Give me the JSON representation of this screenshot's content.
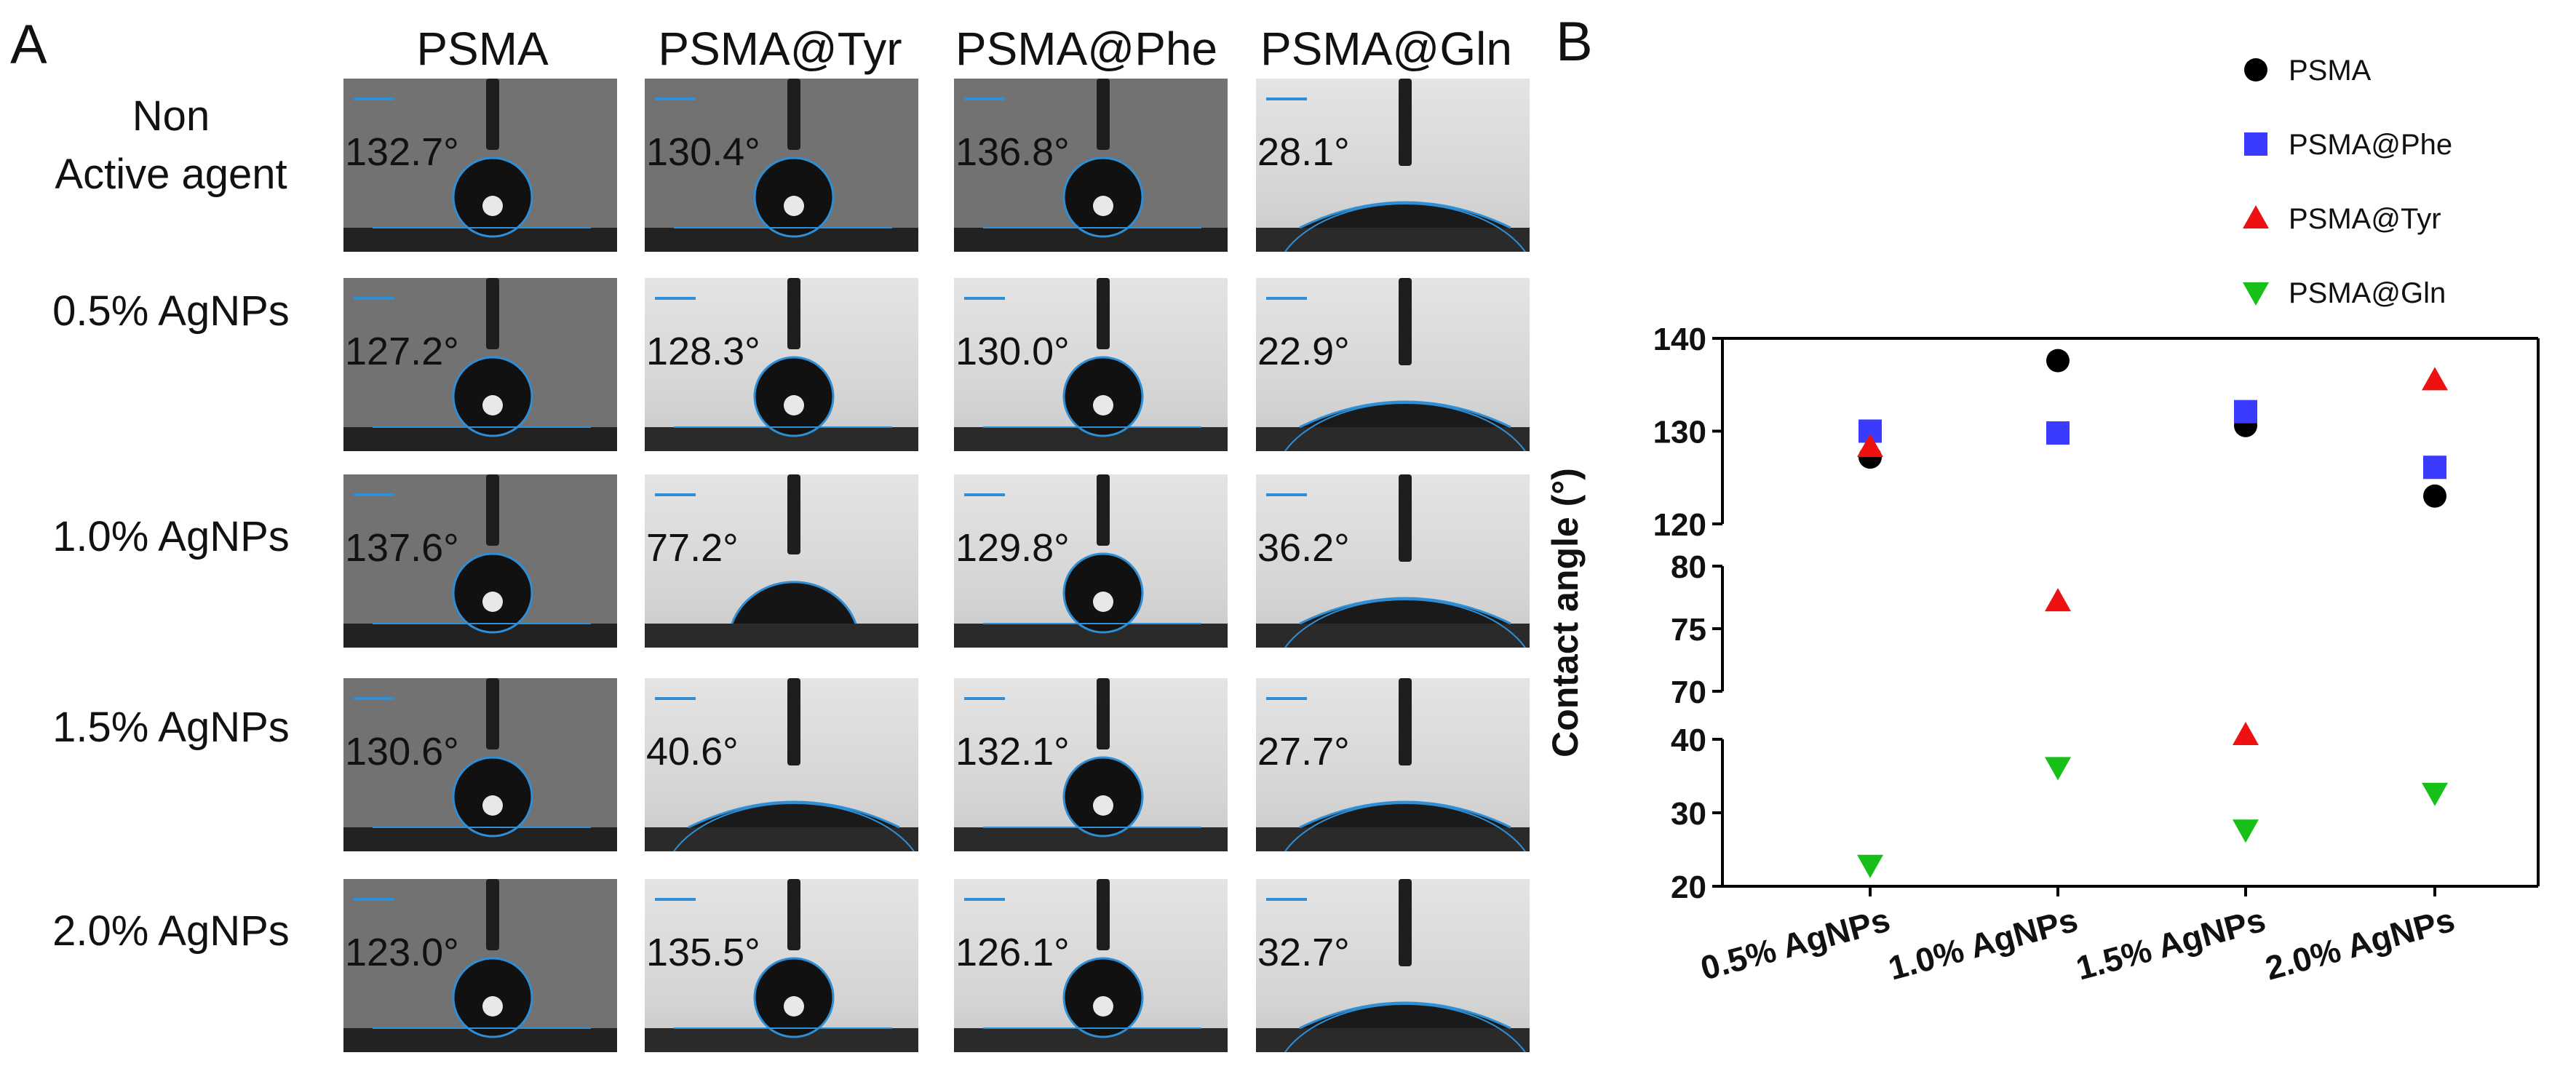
{
  "panelA": {
    "letter": "A",
    "columns": [
      "PSMA",
      "PSMA@Tyr",
      "PSMA@Phe",
      "PSMA@Gln"
    ],
    "rows": [
      {
        "label": "Non\nActive agent",
        "angles": [
          "132.7°",
          "130.4°",
          "136.8°",
          "28.1°"
        ]
      },
      {
        "label": "0.5% AgNPs",
        "angles": [
          "127.2°",
          "128.3°",
          "130.0°",
          "22.9°"
        ]
      },
      {
        "label": "1.0% AgNPs",
        "angles": [
          "137.6°",
          "77.2°",
          "129.8°",
          "36.2°"
        ]
      },
      {
        "label": "1.5% AgNPs",
        "angles": [
          "130.6°",
          "40.6°",
          "132.1°",
          "27.7°"
        ]
      },
      {
        "label": "2.0% AgNPs",
        "angles": [
          "123.0°",
          "135.5°",
          "126.1°",
          "32.7°"
        ]
      }
    ]
  },
  "panelB": {
    "letter": "B"
  },
  "chart_data": {
    "type": "scatter",
    "categories": [
      "0.5% AgNPs",
      "1.0% AgNPs",
      "1.5% AgNPs",
      "2.0% AgNPs"
    ],
    "ylabel": "Contact angle (°)",
    "xlabel": "",
    "y_segments": [
      {
        "range": [
          20,
          40
        ],
        "ticks": [
          20,
          30,
          40
        ]
      },
      {
        "range": [
          70,
          80
        ],
        "ticks": [
          70,
          75,
          80
        ]
      },
      {
        "range": [
          120,
          140
        ],
        "ticks": [
          120,
          130,
          140
        ]
      }
    ],
    "legend_position": "top-right",
    "series": [
      {
        "name": "PSMA",
        "marker": "circle",
        "color": "#000000",
        "values": [
          127.2,
          137.6,
          130.6,
          123.0
        ]
      },
      {
        "name": "PSMA@Phe",
        "marker": "square",
        "color": "#3b3bff",
        "values": [
          130.0,
          129.8,
          132.1,
          126.1
        ]
      },
      {
        "name": "PSMA@Tyr",
        "marker": "triangle-up",
        "color": "#ee1111",
        "values": [
          128.3,
          77.2,
          40.6,
          135.5
        ]
      },
      {
        "name": "PSMA@Gln",
        "marker": "triangle-down",
        "color": "#16c016",
        "values": [
          22.9,
          36.2,
          27.7,
          32.7
        ]
      }
    ]
  }
}
